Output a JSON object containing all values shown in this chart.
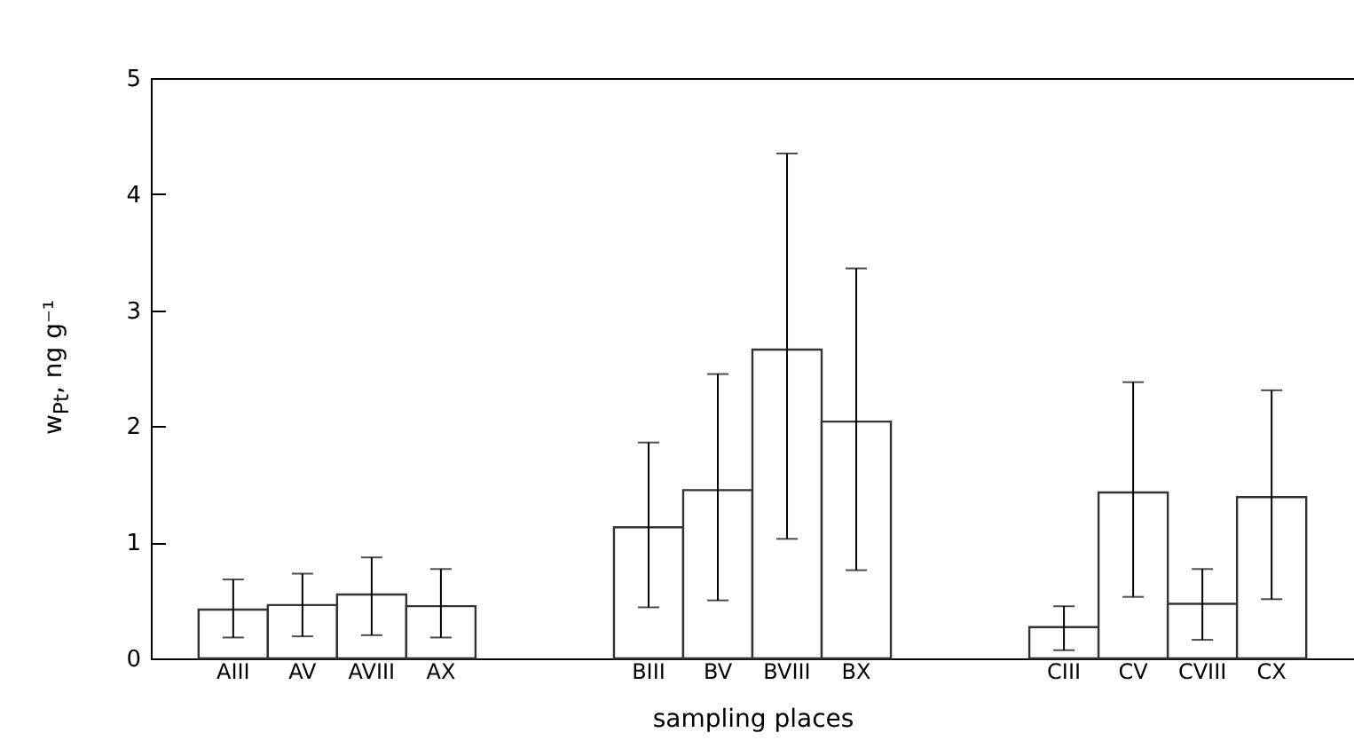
{
  "chart_data": {
    "type": "bar",
    "xlabel": "sampling places",
    "ylabel": "w$_{Pt}$, ng g⁻¹",
    "categories": [
      "AIII",
      "AV",
      "AVIII",
      "AX",
      null,
      null,
      "BIII",
      "BV",
      "BVIII",
      "BX",
      null,
      null,
      "CIII",
      "CV",
      "CVIII",
      "CX"
    ],
    "values": [
      0.42,
      0.46,
      0.55,
      0.45,
      null,
      null,
      1.13,
      1.45,
      2.66,
      2.04,
      null,
      null,
      0.27,
      1.43,
      0.47,
      1.39
    ],
    "errors": [
      [
        0.18,
        0.68
      ],
      [
        0.19,
        0.73
      ],
      [
        0.2,
        0.87
      ],
      [
        0.18,
        0.77
      ],
      null,
      null,
      [
        0.44,
        1.86
      ],
      [
        0.5,
        2.45
      ],
      [
        1.03,
        4.35
      ],
      [
        0.76,
        3.36
      ],
      null,
      null,
      [
        0.07,
        0.45
      ],
      [
        0.53,
        2.38
      ],
      [
        0.16,
        0.77
      ],
      [
        0.51,
        2.31
      ]
    ],
    "color": "#ffffff",
    "ylim": [
      0,
      5
    ],
    "yticks": [
      0,
      1,
      2,
      3,
      4,
      5
    ],
    "grid": false
  }
}
